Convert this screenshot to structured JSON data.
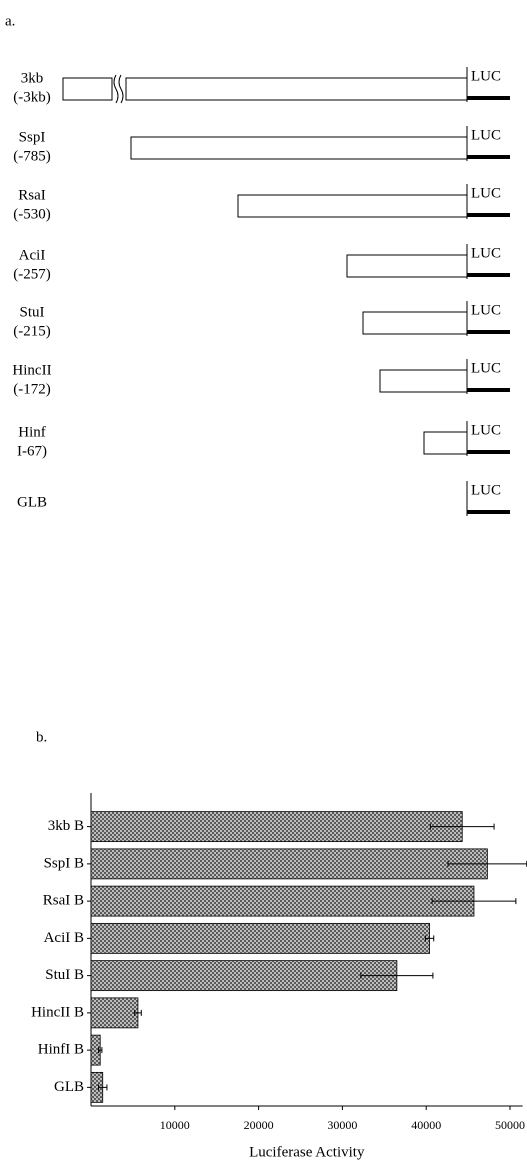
{
  "panel_a": {
    "label": "a.",
    "rows": [
      {
        "name": "3kb",
        "site": "(-3kb)",
        "luc": "LUC"
      },
      {
        "name": "SspI",
        "site": "(-785)",
        "luc": "LUC"
      },
      {
        "name": "RsaI",
        "site": "(-530)",
        "luc": "LUC"
      },
      {
        "name": "AciI",
        "site": "(-257)",
        "luc": "LUC"
      },
      {
        "name": "StuI",
        "site": "(-215)",
        "luc": "LUC"
      },
      {
        "name": "HincII",
        "site": "(-172)",
        "luc": "LUC"
      },
      {
        "name": "Hinf",
        "site": "I-67)",
        "luc": "LUC"
      },
      {
        "name": "GLB",
        "luc": "LUC"
      }
    ]
  },
  "chart_data": {
    "type": "barh",
    "label": "b.",
    "categories": [
      "3kb B",
      "SspI B",
      "RsaI B",
      "AciI B",
      "StuI B",
      "HincII B",
      "HinfI B",
      "GLB"
    ],
    "values": [
      44300,
      47300,
      45700,
      40400,
      36500,
      5600,
      1100,
      1400
    ],
    "errors": [
      3800,
      4700,
      5000,
      500,
      4300,
      400,
      200,
      500
    ],
    "xlabel": "Luciferase Activity",
    "xlim": [
      0,
      51500
    ],
    "xticks": [
      10000,
      20000,
      30000,
      40000,
      50000
    ],
    "color": "#8a8a8a"
  }
}
